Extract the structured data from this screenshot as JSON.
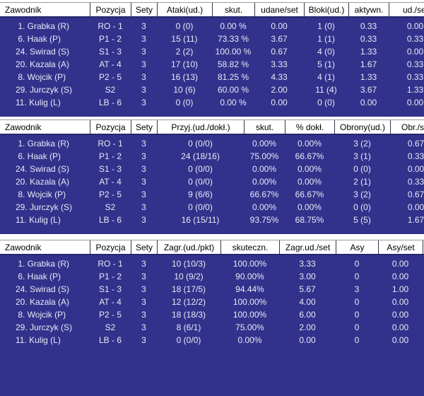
{
  "palette": {
    "navy_row_bg": "#32328C",
    "row_text": "#E9E9F7",
    "header_bg": "#FFFFFF",
    "header_text": "#000000",
    "header_divider": "#35354D",
    "header_bottom_line": "#26266E",
    "header_top_line": "#9A9A9A"
  },
  "tables": [
    {
      "title": "attacks-and-blocks",
      "columns": [
        "Zawodnik",
        "Pozycja",
        "Sety",
        "Ataki(ud.)",
        "skut.",
        "udane/set",
        "Bloki(ud.)",
        "aktywn.",
        "ud./set"
      ],
      "rows": [
        [
          " 1. Grabka (R)",
          "RO - 1",
          "3",
          "0 (0)",
          "0.00 %",
          "0.00",
          "1 (0)",
          "0.33",
          "0.00"
        ],
        [
          " 6. Haak (P)",
          "P1 - 2",
          "3",
          "15 (11)",
          "73.33 %",
          "3.67",
          "1 (1)",
          "0.33",
          "0.33"
        ],
        [
          "24. Swirad (S)",
          "S1 - 3",
          "3",
          "2 (2)",
          "100.00 %",
          "0.67",
          "4 (0)",
          "1.33",
          "0.00"
        ],
        [
          "20. Kazala (A)",
          "AT - 4",
          "3",
          "17 (10)",
          "58.82 %",
          "3.33",
          "5 (1)",
          "1.67",
          "0.33"
        ],
        [
          " 8. Wojcik (P)",
          "P2 - 5",
          "3",
          "16 (13)",
          "81.25 %",
          "4.33",
          "4 (1)",
          "1.33",
          "0.33"
        ],
        [
          "29. Jurczyk (S)",
          "S2",
          "3",
          "10 (6)",
          "60.00 %",
          "2.00",
          "11 (4)",
          "3.67",
          "1.33"
        ],
        [
          "11. Kulig (L)",
          "LB - 6",
          "3",
          "0 (0)",
          "0.00 %",
          "0.00",
          "0 (0)",
          "0.00",
          "0.00"
        ]
      ]
    },
    {
      "title": "reception-and-defense",
      "columns": [
        "Zawodnik",
        "Pozycja",
        "Sety",
        "Przyj.(ud./dokł.)",
        "skut.",
        "% dokł.",
        "Obrony(ud.)",
        "Obr./set"
      ],
      "rows": [
        [
          " 1. Grabka (R)",
          "RO - 1",
          "3",
          "0 (0/0)",
          "0.00%",
          "0.00%",
          "3 (2)",
          "0.67"
        ],
        [
          " 6. Haak (P)",
          "P1 - 2",
          "3",
          "24 (18/16)",
          "75.00%",
          "66.67%",
          "3 (1)",
          "0.33"
        ],
        [
          "24. Swirad (S)",
          "S1 - 3",
          "3",
          "0 (0/0)",
          "0.00%",
          "0.00%",
          "0 (0)",
          "0.00"
        ],
        [
          "20. Kazala (A)",
          "AT - 4",
          "3",
          "0 (0/0)",
          "0.00%",
          "0.00%",
          "2 (1)",
          "0.33"
        ],
        [
          " 8. Wojcik (P)",
          "P2 - 5",
          "3",
          "9 (6/6)",
          "66.67%",
          "66.67%",
          "3 (2)",
          "0.67"
        ],
        [
          "29. Jurczyk (S)",
          "S2",
          "3",
          "0 (0/0)",
          "0.00%",
          "0.00%",
          "0 (0)",
          "0.00"
        ],
        [
          "11. Kulig (L)",
          "LB - 6",
          "3",
          "16 (15/11)",
          "93.75%",
          "68.75%",
          "5 (5)",
          "1.67"
        ]
      ]
    },
    {
      "title": "serve-and-aces",
      "columns": [
        "Zawodnik",
        "Pozycja",
        "Sety",
        "Zagr.(ud./pkt)",
        "skuteczn.",
        "Zagr.ud./set",
        "Asy",
        "Asy/set"
      ],
      "rows": [
        [
          " 1. Grabka (R)",
          "RO - 1",
          "3",
          "10 (10/3)",
          "100.00%",
          "3.33",
          "0",
          "0.00"
        ],
        [
          " 6. Haak (P)",
          "P1 - 2",
          "3",
          "10 (9/2)",
          "90.00%",
          "3.00",
          "0",
          "0.00"
        ],
        [
          "24. Swirad (S)",
          "S1 - 3",
          "3",
          "18 (17/5)",
          "94.44%",
          "5.67",
          "3",
          "1.00"
        ],
        [
          "20. Kazala (A)",
          "AT - 4",
          "3",
          "12 (12/2)",
          "100.00%",
          "4.00",
          "0",
          "0.00"
        ],
        [
          " 8. Wojcik (P)",
          "P2 - 5",
          "3",
          "18 (18/3)",
          "100.00%",
          "6.00",
          "0",
          "0.00"
        ],
        [
          "29. Jurczyk (S)",
          "S2",
          "3",
          "8 (6/1)",
          "75.00%",
          "2.00",
          "0",
          "0.00"
        ],
        [
          "11. Kulig (L)",
          "LB - 6",
          "3",
          "0 (0/0)",
          "0.00%",
          "0.00",
          "0",
          "0.00"
        ]
      ]
    }
  ]
}
